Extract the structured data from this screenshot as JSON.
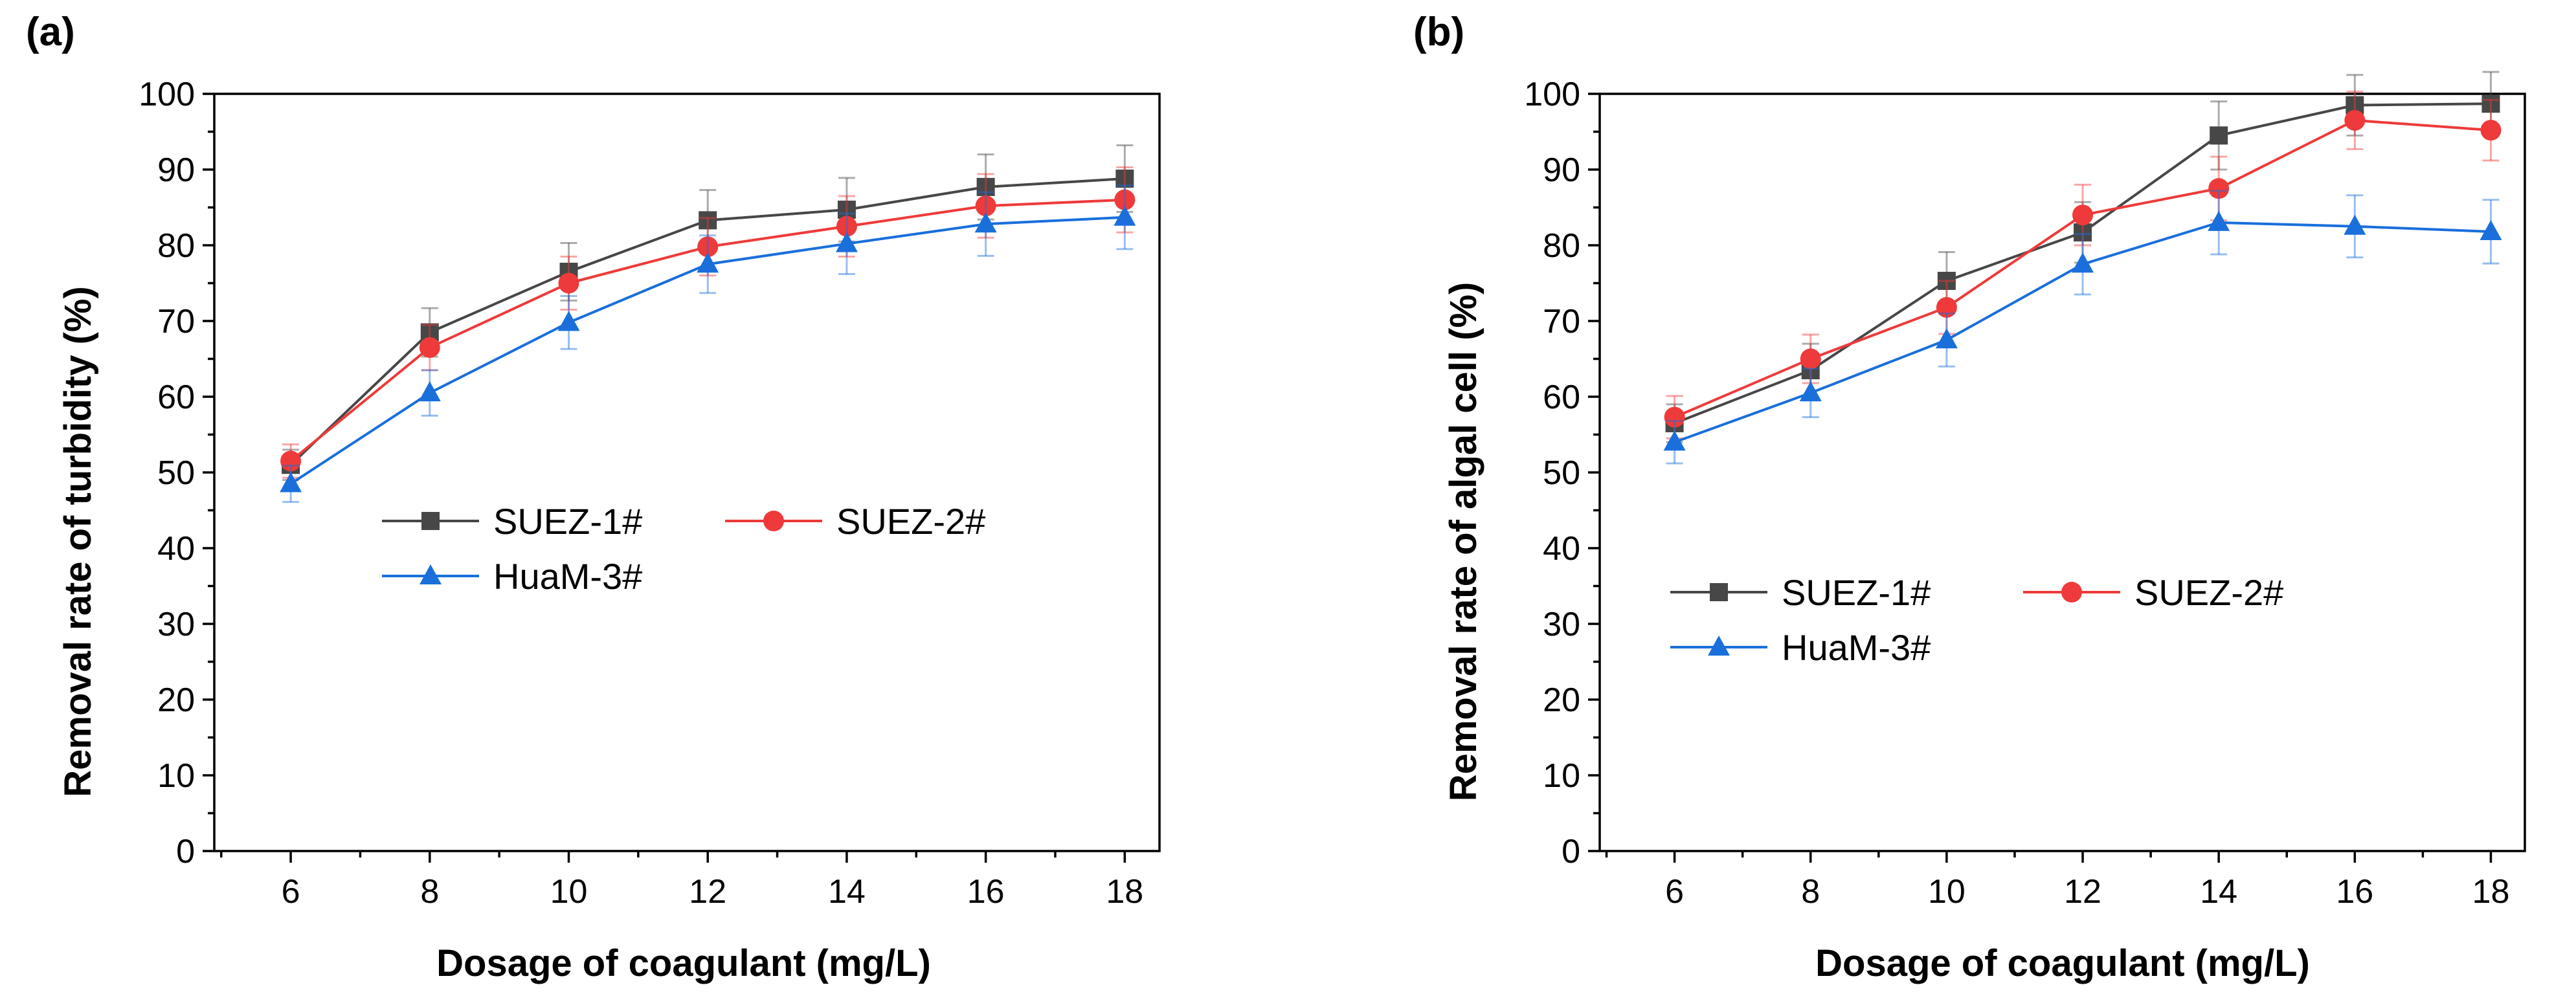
{
  "chart_data": [
    {
      "type": "line",
      "panel_label": "(a)",
      "xlabel": "Dosage of coagulant (mg/L)",
      "ylabel": "Removal rate of turbidity (%)",
      "x": [
        6,
        8,
        10,
        12,
        14,
        16,
        18
      ],
      "xticks": [
        "6",
        "8",
        "10",
        "12",
        "14",
        "16",
        "18"
      ],
      "xlim": [
        4.9,
        18.5
      ],
      "ylim": [
        0,
        100
      ],
      "yticks": [
        "0",
        "10",
        "20",
        "30",
        "40",
        "50",
        "60",
        "70",
        "80",
        "90",
        "100"
      ],
      "grid": false,
      "legend_position": "center",
      "series": [
        {
          "name": "SUEZ-1#",
          "color": "#474747",
          "marker": "square",
          "values": [
            51.0,
            68.5,
            76.5,
            83.3,
            84.7,
            87.7,
            88.8
          ],
          "errors": [
            2.0,
            3.2,
            3.8,
            4.0,
            4.2,
            4.3,
            4.4
          ]
        },
        {
          "name": "SUEZ-2#",
          "color": "#ee3a3a",
          "marker": "circle",
          "values": [
            51.5,
            66.5,
            75.0,
            79.8,
            82.5,
            85.2,
            86.0
          ],
          "errors": [
            2.2,
            3.0,
            3.5,
            3.8,
            4.0,
            4.2,
            4.3
          ]
        },
        {
          "name": "HuaM-3#",
          "color": "#1a6fdb",
          "marker": "triangle",
          "values": [
            48.5,
            60.5,
            69.8,
            77.5,
            80.2,
            82.8,
            83.7
          ],
          "errors": [
            2.4,
            3.0,
            3.5,
            3.8,
            4.0,
            4.2,
            4.2
          ]
        }
      ]
    },
    {
      "type": "line",
      "panel_label": "(b)",
      "xlabel": "Dosage of coagulant (mg/L)",
      "ylabel": "Removal rate of algal cell (%)",
      "x": [
        6,
        8,
        10,
        12,
        14,
        16,
        18
      ],
      "xticks": [
        "6",
        "8",
        "10",
        "12",
        "14",
        "16",
        "18"
      ],
      "xlim": [
        4.9,
        18.5
      ],
      "ylim": [
        0,
        100
      ],
      "yticks": [
        "0",
        "10",
        "20",
        "30",
        "40",
        "50",
        "60",
        "70",
        "80",
        "90",
        "100"
      ],
      "grid": false,
      "legend_position": "center-left",
      "series": [
        {
          "name": "SUEZ-1#",
          "color": "#474747",
          "marker": "square",
          "values": [
            56.5,
            63.5,
            75.3,
            81.7,
            94.5,
            98.5,
            98.7
          ],
          "errors": [
            2.5,
            3.5,
            3.8,
            4.0,
            4.5,
            4.0,
            4.2
          ]
        },
        {
          "name": "SUEZ-2#",
          "color": "#ee3a3a",
          "marker": "circle",
          "values": [
            57.3,
            65.0,
            71.8,
            84.0,
            87.5,
            96.5,
            95.2
          ],
          "errors": [
            2.8,
            3.2,
            3.5,
            4.0,
            4.2,
            3.8,
            4.0
          ]
        },
        {
          "name": "HuaM-3#",
          "color": "#1a6fdb",
          "marker": "triangle",
          "values": [
            54.0,
            60.5,
            67.5,
            77.5,
            83.0,
            82.5,
            81.8
          ],
          "errors": [
            2.8,
            3.2,
            3.5,
            4.0,
            4.2,
            4.1,
            4.2
          ]
        }
      ]
    }
  ]
}
